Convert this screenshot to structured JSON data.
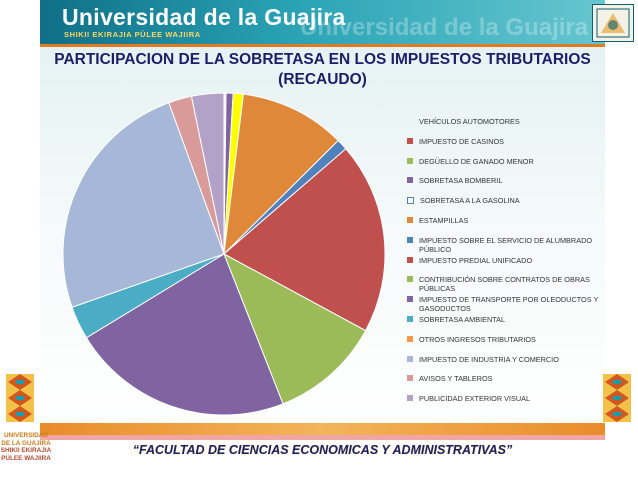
{
  "header": {
    "university_name": "Universidad de la Guajira",
    "university_subtitle": "SHIKII EKIRAJIA PÜLEE WAJIIRA",
    "university_name_shadow": "Universidad de la Guajira"
  },
  "logo": {
    "line1": "UNIVERSIDAD",
    "line2": "DE LA GUAJIRA",
    "line3": "SHIKII EKIRAJIA",
    "line4": "PÜLEE WAJIIRA"
  },
  "footer": {
    "text": "“FACULTAD DE CIENCIAS ECONOMICAS Y ADMINISTRATIVAS”"
  },
  "chart_data": {
    "type": "pie",
    "title": "PARTICIPACION DE LA SOBRETASA EN LOS IMPUESTOS TRIBUTARIOS (RECAUDO)",
    "title_lines": [
      "PARTICIPACION DE LA SOBRETASA EN LOS IMPUESTOS TRIBUTARIOS",
      "(RECAUDO)"
    ],
    "legend_position": "right",
    "slices": [
      {
        "label": "VEHÍCULOS AUTOMOTORES",
        "value": 0.2,
        "color": "#f0f0f0"
      },
      {
        "label": "IMPUESTO DE CASINOS",
        "value": 0.0,
        "color": "#c0504d"
      },
      {
        "label": "DEGÜELLO DE GANADO MENOR",
        "value": 0.0,
        "color": "#9bbb59"
      },
      {
        "label": "SOBRETASA BOMBERIL",
        "value": 0.7,
        "color": "#8064a2"
      },
      {
        "label": "SOBRETASA A LA GASOLINA",
        "value": 1.0,
        "color": "#ffff00"
      },
      {
        "label": "ESTAMPILLAS",
        "value": 10.5,
        "color": "#e0883a"
      },
      {
        "label": "IMPUESTO SOBRE EL SERVICIO DE ALUMBRADO PÚBLICO",
        "value": 1.1,
        "color": "#4f81bd"
      },
      {
        "label": "IMPUESTO PREDIAL UNIFICADO",
        "value": 19.0,
        "color": "#c0504d"
      },
      {
        "label": "CONTRIBUCIÓN SOBRE CONTRATOS DE OBRAS PÚBLICAS",
        "value": 11.0,
        "color": "#9bbb59"
      },
      {
        "label": "IMPUESTO DE TRANSPORTE POR OLEODUCTOS Y GASODUCTOS",
        "value": 22.0,
        "color": "#8064a2"
      },
      {
        "label": "SOBRETASA AMBIENTAL",
        "value": 3.3,
        "color": "#4bacc6"
      },
      {
        "label": "OTROS INGRESOS TRIBUTARIOS",
        "value": 0.0,
        "color": "#f79646"
      },
      {
        "label": "IMPUESTO DE INDUSTRIA Y COMERCIO",
        "value": 24.5,
        "color": "#a6b7d8"
      },
      {
        "label": "AVISOS Y TABLEROS",
        "value": 2.3,
        "color": "#d99b9a"
      },
      {
        "label": "PUBLICIDAD EXTERIOR VISUAL",
        "value": 3.2,
        "color": "#b3a2c7"
      }
    ]
  }
}
